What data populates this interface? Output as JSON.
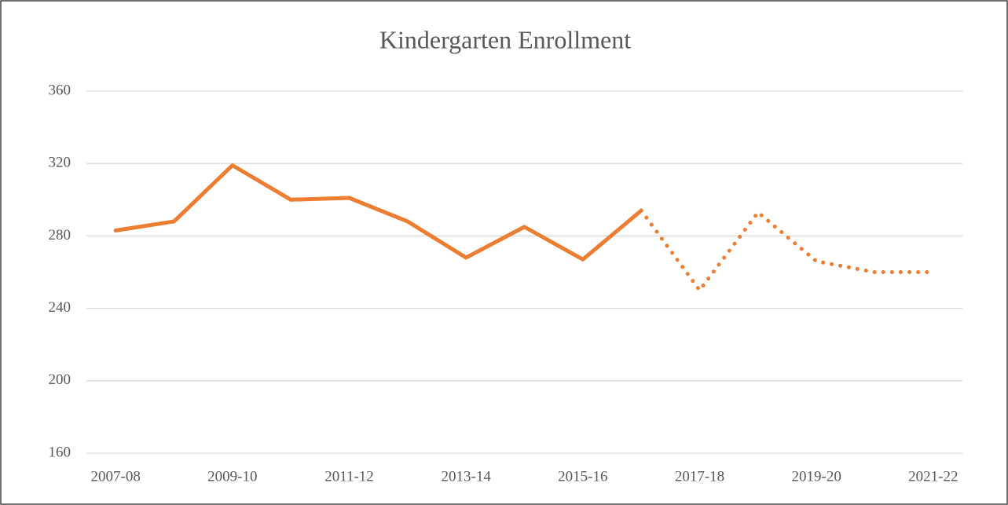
{
  "chart_data": {
    "type": "line",
    "title": "Kindergarten Enrollment",
    "categories": [
      "2007-08",
      null,
      "2009-10",
      null,
      "2011-12",
      null,
      "2013-14",
      null,
      "2015-16",
      null,
      "2017-18",
      null,
      "2019-20",
      null,
      "2021-22"
    ],
    "series": [
      {
        "color": "#ed7d31",
        "dash": "solid",
        "values": [
          283,
          288,
          319,
          300,
          301,
          288,
          268,
          285,
          267,
          294,
          null,
          null,
          null,
          null,
          null
        ]
      },
      {
        "color": "#ed7d31",
        "dash": "dotted",
        "values": [
          null,
          null,
          null,
          null,
          null,
          null,
          null,
          null,
          null,
          294,
          250,
          293,
          266,
          260,
          260
        ]
      }
    ],
    "ylim": [
      160,
      360
    ],
    "yticks": [
      160,
      200,
      240,
      280,
      320,
      360
    ],
    "grid": true
  }
}
